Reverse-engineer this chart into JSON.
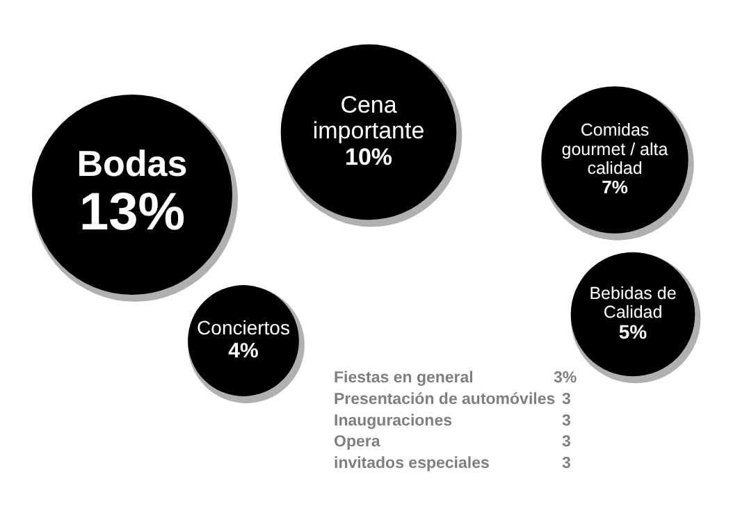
{
  "chart_data": [
    {
      "type": "other",
      "categories": [
        "Bodas",
        "Cena importante",
        "Comidas gourmet / alta calidad",
        "Bebidas de Calidad",
        "Conciertos"
      ],
      "values": [
        13,
        10,
        7,
        5,
        4
      ],
      "value_labels": [
        "13%",
        "10%",
        "7%",
        "5%",
        "4%"
      ],
      "color": "#000000"
    },
    {
      "type": "other",
      "categories": [
        "Fiestas en general",
        "Presentación de automóviles",
        "Inauguraciones",
        "Opera",
        "invitados especiales"
      ],
      "values": [
        3,
        3,
        3,
        3,
        3
      ],
      "value_labels": [
        "3%",
        "3",
        "3",
        "3",
        "3"
      ],
      "color": "#7f7f7f"
    }
  ]
}
